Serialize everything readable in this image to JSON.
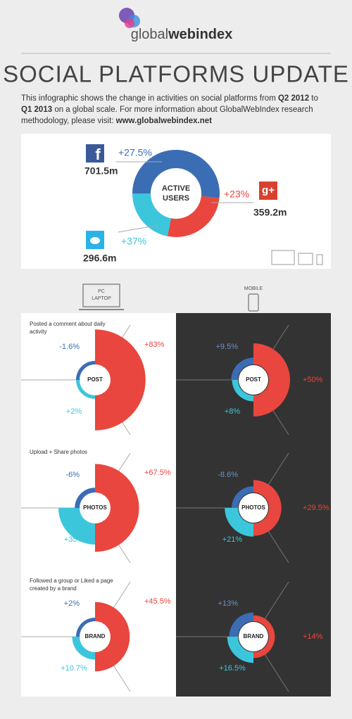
{
  "header": {
    "logo_light": "global",
    "logo_bold": "webindex",
    "title": "SOCIAL PLATFORMS UPDATE",
    "intro": [
      "This infographic shows the change in activities on social platforms from ",
      "Q2 2012",
      " to ",
      "Q1 2013",
      " on a global scale. For more information about GlobalWebIndex research methodology, please visit: ",
      "www.globalwebindex.net"
    ]
  },
  "active_users": {
    "label": [
      "ACTIVE",
      "USERS"
    ],
    "platforms": [
      {
        "users": {
          "value": 701.5,
          "label": "701.5m"
        },
        "growth": {
          "value": 27.5,
          "label": "+27.5%"
        }
      },
      {
        "users": {
          "value": 359.2,
          "label": "359.2m"
        },
        "growth": {
          "value": 23,
          "label": "+23%"
        }
      },
      {
        "users": {
          "value": 296.6,
          "label": "296.6m"
        },
        "growth": {
          "value": 37,
          "label": "+37%"
        }
      }
    ]
  },
  "devices": {
    "pc": [
      "PC",
      "LAPTOP"
    ],
    "mobile": "MOBILE"
  },
  "activities": [
    {
      "caption": "Posted a comment about daily activity",
      "label": "POST",
      "pc": {
        "blue": {
          "value": -1.6,
          "label": "-1.6%"
        },
        "red": {
          "value": 83,
          "label": "+83%"
        },
        "cyan": {
          "value": 2,
          "label": "+2%"
        }
      },
      "mobile": {
        "blue": {
          "value": 9.5,
          "label": "+9.5%"
        },
        "red": {
          "value": 50,
          "label": "+50%"
        },
        "cyan": {
          "value": 8,
          "label": "+8%"
        }
      }
    },
    {
      "caption": "Upload + Share photos",
      "label": "PHOTOS",
      "pc": {
        "blue": {
          "value": -6,
          "label": "-6%"
        },
        "red": {
          "value": 67.5,
          "label": "+67.5%"
        },
        "cyan": {
          "value": 35,
          "label": "+35%"
        }
      },
      "mobile": {
        "blue": {
          "value": -8.6,
          "label": "-8.6%"
        },
        "red": {
          "value": 29.5,
          "label": "+29.5%"
        },
        "cyan": {
          "value": 21,
          "label": "+21%"
        }
      }
    },
    {
      "caption": "Followed a group or Liked a page created by a brand",
      "label": "BRAND",
      "pc": {
        "blue": {
          "value": 2,
          "label": "+2%"
        },
        "red": {
          "value": 45.5,
          "label": "+45.5%"
        },
        "cyan": {
          "value": 10.7,
          "label": "+10.7%"
        }
      },
      "mobile": {
        "blue": {
          "value": 13,
          "label": "+13%"
        },
        "red": {
          "value": 14,
          "label": "+14%"
        },
        "cyan": {
          "value": 16.5,
          "label": "+16.5%"
        }
      }
    }
  ]
}
